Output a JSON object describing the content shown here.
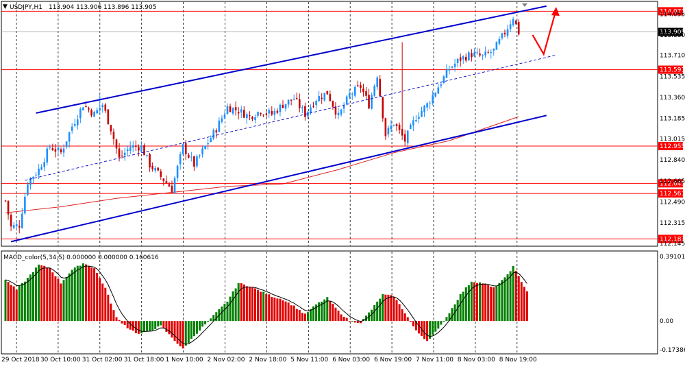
{
  "header": {
    "symbol_label": "USDJPY,H1",
    "ohlc_text": "113.904 113.906 113.896 113.905"
  },
  "macd_header": "MACD_color(5,34,5) 0.000000 0.000000 0.160616",
  "colors": {
    "bull": "#1e90ff",
    "bear": "#c80000",
    "channel": "#0000cd",
    "level": "#ff0000",
    "ma": "#e02020",
    "macd_up": "#008000",
    "macd_down": "#e00000",
    "signal": "#000000",
    "grid": "#000000",
    "arrow": "#ff0000",
    "label_bg": "#ff0000",
    "current_bg": "#000000"
  },
  "chart_data": [
    {
      "type": "candlestick",
      "title": "USDJPY,H1",
      "ylim": [
        112.145,
        114.125
      ],
      "y_ticks": [
        "114.055",
        "113.880",
        "113.710",
        "113.535",
        "113.360",
        "113.185",
        "113.015",
        "112.840",
        "112.665",
        "112.490",
        "112.315",
        "112.145"
      ],
      "x_tick_labels": [
        "29 Oct 2018",
        "30 Oct 10:00",
        "31 Oct 02:00",
        "31 Oct 18:00",
        "1 Nov 10:00",
        "2 Nov 02:00",
        "2 Nov 18:00",
        "5 Nov 11:00",
        "6 Nov 03:00",
        "6 Nov 19:00",
        "7 Nov 11:00",
        "8 Nov 03:00",
        "8 Nov 19:00"
      ],
      "horizontal_levels": [
        "114.077",
        "113.591",
        "112.955",
        "112.645",
        "112.561",
        "112.183"
      ],
      "current_price": "113.905",
      "anchors": [
        {
          "i": 0,
          "p": 112.5
        },
        {
          "i": 2,
          "p": 112.28
        },
        {
          "i": 5,
          "p": 112.3
        },
        {
          "i": 8,
          "p": 112.66
        },
        {
          "i": 12,
          "p": 112.76
        },
        {
          "i": 16,
          "p": 112.95
        },
        {
          "i": 20,
          "p": 112.9
        },
        {
          "i": 24,
          "p": 113.12
        },
        {
          "i": 28,
          "p": 113.3
        },
        {
          "i": 32,
          "p": 113.22
        },
        {
          "i": 35,
          "p": 113.3
        },
        {
          "i": 38,
          "p": 113.1
        },
        {
          "i": 41,
          "p": 112.85
        },
        {
          "i": 45,
          "p": 112.95
        },
        {
          "i": 49,
          "p": 112.95
        },
        {
          "i": 52,
          "p": 112.8
        },
        {
          "i": 56,
          "p": 112.7
        },
        {
          "i": 60,
          "p": 112.6
        },
        {
          "i": 64,
          "p": 112.95
        },
        {
          "i": 68,
          "p": 112.8
        },
        {
          "i": 72,
          "p": 112.95
        },
        {
          "i": 76,
          "p": 113.1
        },
        {
          "i": 80,
          "p": 113.28
        },
        {
          "i": 84,
          "p": 113.25
        },
        {
          "i": 88,
          "p": 113.2
        },
        {
          "i": 92,
          "p": 113.25
        },
        {
          "i": 96,
          "p": 113.22
        },
        {
          "i": 100,
          "p": 113.3
        },
        {
          "i": 104,
          "p": 113.35
        },
        {
          "i": 108,
          "p": 113.22
        },
        {
          "i": 112,
          "p": 113.35
        },
        {
          "i": 116,
          "p": 113.4
        },
        {
          "i": 120,
          "p": 113.2
        },
        {
          "i": 124,
          "p": 113.38
        },
        {
          "i": 128,
          "p": 113.45
        },
        {
          "i": 131,
          "p": 113.3
        },
        {
          "i": 134,
          "p": 113.55
        },
        {
          "i": 137,
          "p": 113.05
        },
        {
          "i": 140,
          "p": 113.15
        },
        {
          "i": 144,
          "p": 113.0
        },
        {
          "i": 148,
          "p": 113.2
        },
        {
          "i": 152,
          "p": 113.3
        },
        {
          "i": 156,
          "p": 113.45
        },
        {
          "i": 160,
          "p": 113.6
        },
        {
          "i": 164,
          "p": 113.68
        },
        {
          "i": 168,
          "p": 113.72
        },
        {
          "i": 172,
          "p": 113.7
        },
        {
          "i": 176,
          "p": 113.75
        },
        {
          "i": 180,
          "p": 113.9
        },
        {
          "i": 183,
          "p": 114.03
        },
        {
          "i": 185,
          "p": 113.9
        }
      ],
      "spikes": [
        {
          "i": 143,
          "high": 113.82
        },
        {
          "i": 34,
          "high": 113.38
        },
        {
          "i": 60,
          "low": 112.56
        }
      ],
      "moving_average": [
        {
          "i": 0,
          "p": 112.4
        },
        {
          "i": 20,
          "p": 112.45
        },
        {
          "i": 40,
          "p": 112.52
        },
        {
          "i": 60,
          "p": 112.57
        },
        {
          "i": 80,
          "p": 112.62
        },
        {
          "i": 100,
          "p": 112.64
        },
        {
          "i": 120,
          "p": 112.76
        },
        {
          "i": 140,
          "p": 112.9
        },
        {
          "i": 160,
          "p": 113.0
        },
        {
          "i": 175,
          "p": 113.12
        },
        {
          "i": 185,
          "p": 113.2
        }
      ],
      "channel_lines": [
        {
          "name": "upper",
          "from": {
            "i": 11,
            "p": 113.23
          },
          "to": {
            "i": 195,
            "p": 114.12
          }
        },
        {
          "name": "lower",
          "from": {
            "i": 2,
            "p": 112.16
          },
          "to": {
            "i": 195,
            "p": 113.21
          }
        },
        {
          "name": "middle",
          "from": {
            "i": 7,
            "p": 112.67
          },
          "to": {
            "i": 198,
            "p": 113.71
          }
        }
      ],
      "forecast_arrow": [
        {
          "i": 190,
          "p": 113.88
        },
        {
          "i": 194,
          "p": 113.72
        },
        {
          "i": 198,
          "p": 114.05
        }
      ],
      "macd": {
        "y_ticks": [
          "0.391016",
          "0.00",
          "-0.173869"
        ],
        "ylim": [
          -0.173869,
          0.391016
        ],
        "anchors": [
          {
            "i": 0,
            "p": 0.25
          },
          {
            "i": 4,
            "p": 0.19
          },
          {
            "i": 8,
            "p": 0.26
          },
          {
            "i": 12,
            "p": 0.34
          },
          {
            "i": 16,
            "p": 0.32
          },
          {
            "i": 20,
            "p": 0.23
          },
          {
            "i": 24,
            "p": 0.31
          },
          {
            "i": 28,
            "p": 0.35
          },
          {
            "i": 32,
            "p": 0.32
          },
          {
            "i": 36,
            "p": 0.2
          },
          {
            "i": 40,
            "p": 0.02
          },
          {
            "i": 44,
            "p": -0.04
          },
          {
            "i": 48,
            "p": -0.08
          },
          {
            "i": 52,
            "p": -0.06
          },
          {
            "i": 56,
            "p": -0.03
          },
          {
            "i": 60,
            "p": -0.1
          },
          {
            "i": 64,
            "p": -0.17
          },
          {
            "i": 68,
            "p": -0.09
          },
          {
            "i": 72,
            "p": -0.02
          },
          {
            "i": 76,
            "p": 0.05
          },
          {
            "i": 80,
            "p": 0.12
          },
          {
            "i": 84,
            "p": 0.23
          },
          {
            "i": 88,
            "p": 0.21
          },
          {
            "i": 92,
            "p": 0.18
          },
          {
            "i": 96,
            "p": 0.15
          },
          {
            "i": 100,
            "p": 0.13
          },
          {
            "i": 104,
            "p": 0.09
          },
          {
            "i": 108,
            "p": 0.04
          },
          {
            "i": 112,
            "p": 0.1
          },
          {
            "i": 116,
            "p": 0.14
          },
          {
            "i": 120,
            "p": 0.06
          },
          {
            "i": 124,
            "p": 0.0
          },
          {
            "i": 128,
            "p": -0.01
          },
          {
            "i": 132,
            "p": 0.07
          },
          {
            "i": 136,
            "p": 0.16
          },
          {
            "i": 140,
            "p": 0.15
          },
          {
            "i": 144,
            "p": 0.05
          },
          {
            "i": 148,
            "p": -0.06
          },
          {
            "i": 152,
            "p": -0.12
          },
          {
            "i": 156,
            "p": -0.05
          },
          {
            "i": 160,
            "p": 0.05
          },
          {
            "i": 164,
            "p": 0.16
          },
          {
            "i": 168,
            "p": 0.24
          },
          {
            "i": 172,
            "p": 0.23
          },
          {
            "i": 176,
            "p": 0.2
          },
          {
            "i": 180,
            "p": 0.26
          },
          {
            "i": 183,
            "p": 0.33
          },
          {
            "i": 188,
            "p": 0.18
          }
        ]
      }
    }
  ]
}
